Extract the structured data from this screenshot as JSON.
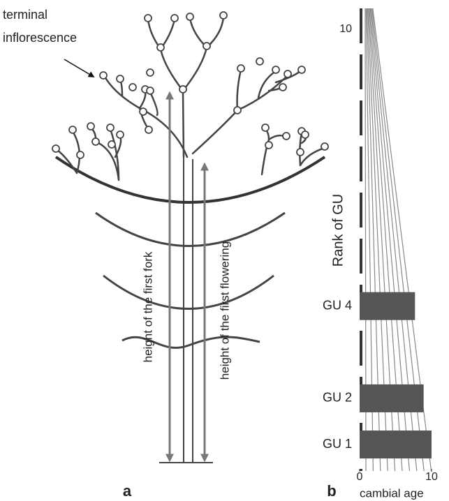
{
  "panel_a": {
    "label": "a",
    "annotation": [
      "terminal",
      "inflorescence"
    ],
    "arrow_labels": [
      "height of the first fork",
      "height of the first flowering"
    ]
  },
  "chart_data": {
    "type": "bar",
    "orientation": "horizontal",
    "panel_label": "b",
    "categories": [
      "GU 1",
      "GU 2",
      null,
      "GU 4",
      null,
      null,
      null,
      null,
      null,
      "10"
    ],
    "values": [
      10,
      8.9,
      null,
      7.7,
      null,
      null,
      null,
      null,
      null,
      null
    ],
    "color": "#555555",
    "xlim": [
      0,
      10
    ],
    "xticks": [
      0,
      10
    ],
    "xlabel": "cambial age",
    "ylabel": "Rank of GU"
  }
}
